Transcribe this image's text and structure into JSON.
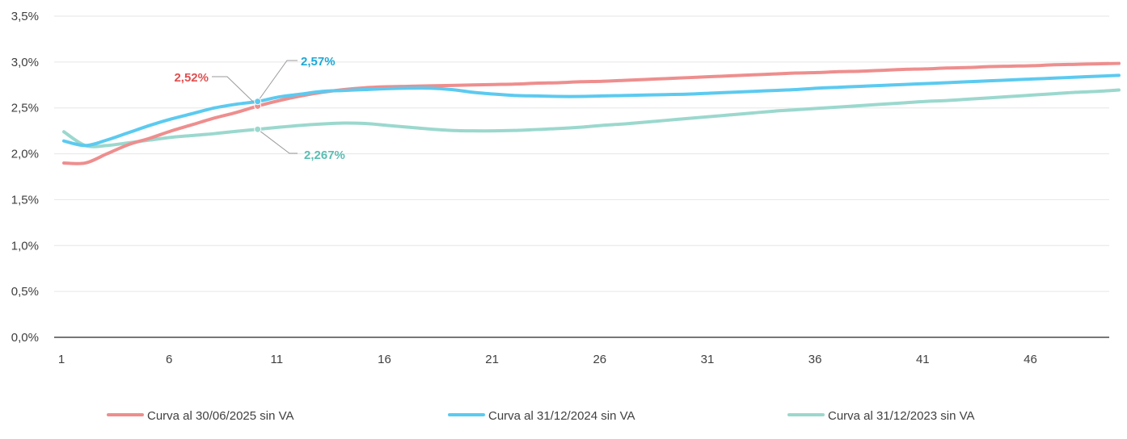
{
  "chart_data": {
    "type": "line",
    "title": "",
    "xlabel": "",
    "ylabel": "",
    "ylim": [
      0,
      3.5
    ],
    "xlim": [
      1,
      50
    ],
    "grid": true,
    "legend_position": "bottom",
    "y_ticks": [
      "0,0%",
      "0,5%",
      "1,0%",
      "1,5%",
      "2,0%",
      "2,5%",
      "3,0%",
      "3,5%"
    ],
    "x_ticks": [
      "1",
      "6",
      "11",
      "16",
      "21",
      "26",
      "31",
      "36",
      "41",
      "46"
    ],
    "x": [
      1,
      2,
      3,
      4,
      5,
      6,
      7,
      8,
      9,
      10,
      11,
      12,
      13,
      14,
      15,
      16,
      17,
      18,
      19,
      20,
      21,
      22,
      23,
      24,
      25,
      26,
      27,
      28,
      29,
      30,
      31,
      32,
      33,
      34,
      35,
      36,
      37,
      38,
      39,
      40,
      41,
      42,
      43,
      44,
      45,
      46,
      47,
      48,
      49,
      50
    ],
    "series": [
      {
        "name": "Curva al 30/06/2025 sin VA",
        "color": "#ee8e8e",
        "values": [
          1.9,
          1.9,
          2.0,
          2.1,
          2.17,
          2.25,
          2.32,
          2.39,
          2.45,
          2.52,
          2.58,
          2.63,
          2.67,
          2.7,
          2.72,
          2.73,
          2.735,
          2.74,
          2.745,
          2.75,
          2.755,
          2.76,
          2.77,
          2.775,
          2.785,
          2.79,
          2.8,
          2.81,
          2.82,
          2.83,
          2.84,
          2.85,
          2.86,
          2.87,
          2.88,
          2.885,
          2.895,
          2.9,
          2.91,
          2.92,
          2.925,
          2.935,
          2.94,
          2.95,
          2.955,
          2.96,
          2.97,
          2.975,
          2.98,
          2.985
        ]
      },
      {
        "name": "Curva al 31/12/2024 sin VA",
        "color": "#5ccaf0",
        "values": [
          2.14,
          2.09,
          2.15,
          2.23,
          2.31,
          2.38,
          2.44,
          2.5,
          2.54,
          2.57,
          2.62,
          2.65,
          2.68,
          2.69,
          2.7,
          2.71,
          2.715,
          2.715,
          2.7,
          2.67,
          2.65,
          2.635,
          2.63,
          2.625,
          2.625,
          2.63,
          2.635,
          2.64,
          2.645,
          2.65,
          2.66,
          2.67,
          2.68,
          2.69,
          2.7,
          2.715,
          2.725,
          2.735,
          2.745,
          2.755,
          2.765,
          2.775,
          2.785,
          2.795,
          2.805,
          2.815,
          2.825,
          2.835,
          2.845,
          2.855
        ]
      },
      {
        "name": "Curva al 31/12/2023 sin VA",
        "color": "#9bd8ce",
        "values": [
          2.24,
          2.09,
          2.09,
          2.12,
          2.15,
          2.18,
          2.2,
          2.22,
          2.245,
          2.267,
          2.29,
          2.31,
          2.325,
          2.335,
          2.33,
          2.31,
          2.29,
          2.27,
          2.255,
          2.25,
          2.25,
          2.255,
          2.265,
          2.275,
          2.29,
          2.31,
          2.325,
          2.345,
          2.365,
          2.385,
          2.405,
          2.425,
          2.445,
          2.465,
          2.48,
          2.495,
          2.51,
          2.525,
          2.54,
          2.555,
          2.57,
          2.58,
          2.595,
          2.61,
          2.625,
          2.64,
          2.655,
          2.67,
          2.68,
          2.695
        ]
      }
    ],
    "annotations": [
      {
        "series": 0,
        "x": 10,
        "label": "2,52%",
        "color": "#e05050"
      },
      {
        "series": 1,
        "x": 10,
        "label": "2,57%",
        "color": "#1ea8d8"
      },
      {
        "series": 2,
        "x": 10,
        "label": "2,267%",
        "color": "#5bbdb2"
      }
    ]
  }
}
